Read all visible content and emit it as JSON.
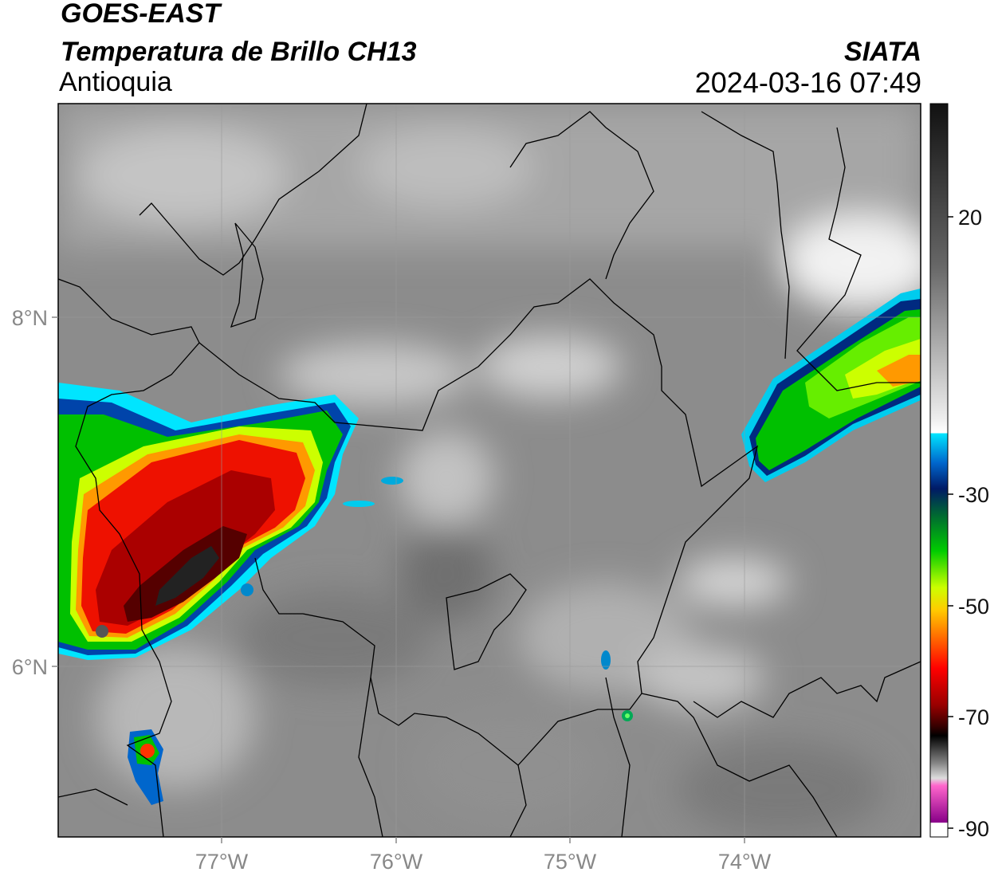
{
  "header": {
    "satellite": "GOES-EAST",
    "product": "Temperatura de Brillo CH13",
    "region": "Antioquia",
    "agency": "SIATA",
    "datetime": "2024-03-16 07:49"
  },
  "map": {
    "lon_labels": [
      "77°W",
      "76°W",
      "75°W",
      "74°W"
    ],
    "lat_labels": [
      "8°N",
      "6°N"
    ]
  },
  "colorbar": {
    "tick_labels": [
      "20",
      "-30",
      "-50",
      "-70",
      "-90"
    ]
  },
  "colors": {
    "cold_core": "#1a1a1a",
    "deep_red": "#8b0000",
    "red": "#e60000",
    "orange": "#ff8c00",
    "yellow": "#ffff00",
    "green": "#00c000",
    "cyan": "#00e5ff",
    "navy": "#002a80",
    "magenta": "#cc33cc"
  }
}
